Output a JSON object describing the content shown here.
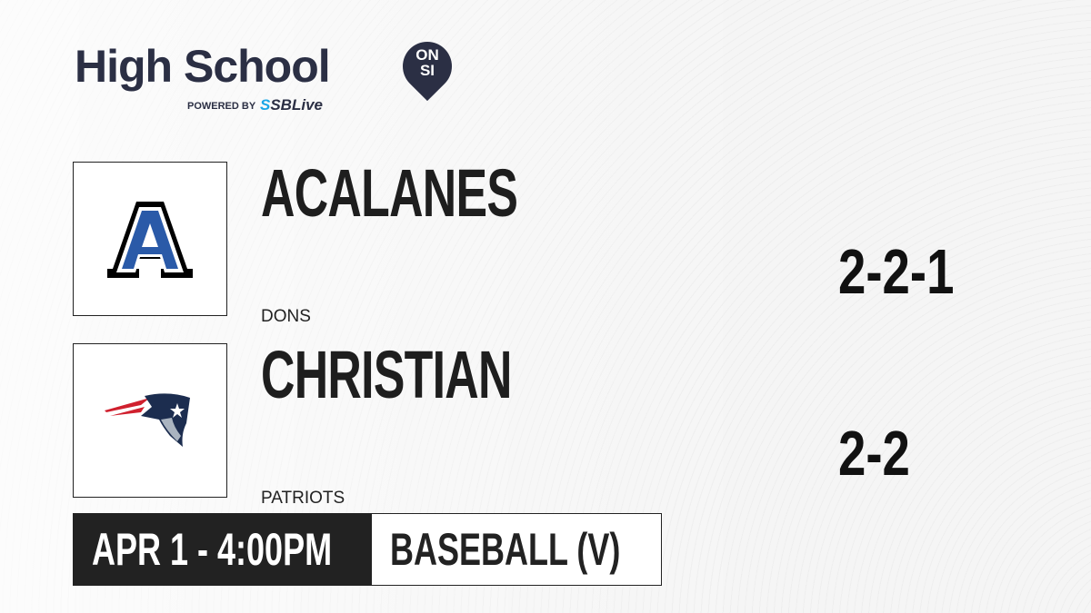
{
  "brand": {
    "title": "High School",
    "badge_top": "ON",
    "badge_bottom": "SI",
    "powered_by": "POWERED BY",
    "partner_prefix": "S",
    "partner": "SBLive"
  },
  "teams": [
    {
      "name": "ACALANES",
      "mascot": "DONS",
      "record": "2-2-1",
      "logo_icon": "acalanes-a-logo"
    },
    {
      "name": "CHRISTIAN",
      "mascot": "PATRIOTS",
      "record": "2-2",
      "logo_icon": "patriots-head-logo"
    }
  ],
  "game": {
    "datetime": "APR 1 - 4:00PM",
    "sport": "BASEBALL (V)"
  },
  "colors": {
    "brand": "#2b2f44",
    "accent": "#1aa6e6",
    "acalanes_blue": "#2a5aa8",
    "patriots_navy": "#1c2d4f",
    "patriots_red": "#d0202e"
  }
}
